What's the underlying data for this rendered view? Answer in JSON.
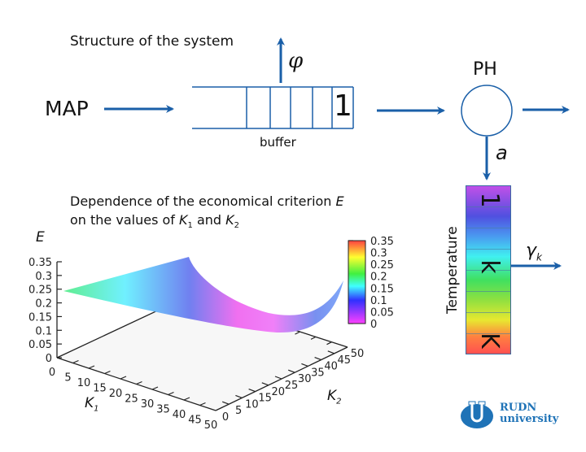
{
  "diagram": {
    "title": "Structure of the system",
    "source_label": "MAP",
    "buffer_label": "buffer",
    "buffer_cell_label": "1",
    "loss_label": "φ",
    "server_label": "PH",
    "transition_label": "a",
    "temperature_label": "Temperature",
    "temperature_cells": [
      "1",
      "k",
      "K"
    ],
    "exit_label_main": "γ",
    "exit_label_sub": "k",
    "accent_color": "#1a5fa8"
  },
  "chart_caption": {
    "line1_prefix": "Dependence of the economical criterion ",
    "line1_var": "E",
    "line2_prefix": "on the values of ",
    "k1_main": "K",
    "k1_sub": "1",
    "line2_and": " and ",
    "k2_main": "K",
    "k2_sub": "2"
  },
  "chart_data": {
    "type": "surface",
    "zlabel": "E",
    "xlabel_main": "K",
    "xlabel_sub": "1",
    "ylabel_main": "K",
    "ylabel_sub": "2",
    "z_ticks": [
      "0.35",
      "0.3",
      "0.25",
      "0.2",
      "0.15",
      "0.1",
      "0.05",
      "0"
    ],
    "x_ticks": [
      "0",
      "5",
      "10",
      "15",
      "20",
      "25",
      "30",
      "35",
      "40",
      "45",
      "50"
    ],
    "y_ticks": [
      "0",
      "5",
      "10",
      "15",
      "20",
      "25",
      "30",
      "35",
      "40",
      "45",
      "50"
    ],
    "zlim": [
      0,
      0.35
    ],
    "xlim": [
      0,
      50
    ],
    "ylim": [
      0,
      50
    ],
    "colorbar_ticks": [
      "0.35",
      "0.3",
      "0.25",
      "0.2",
      "0.15",
      "0.1",
      "0.05",
      "0"
    ],
    "colormap": [
      "#ff4040",
      "#ffff30",
      "#40f040",
      "#40ffff",
      "#3030ff",
      "#ff40ff"
    ]
  },
  "logo": {
    "line1": "RUDN",
    "line2": "university",
    "color": "#1f73b7"
  }
}
